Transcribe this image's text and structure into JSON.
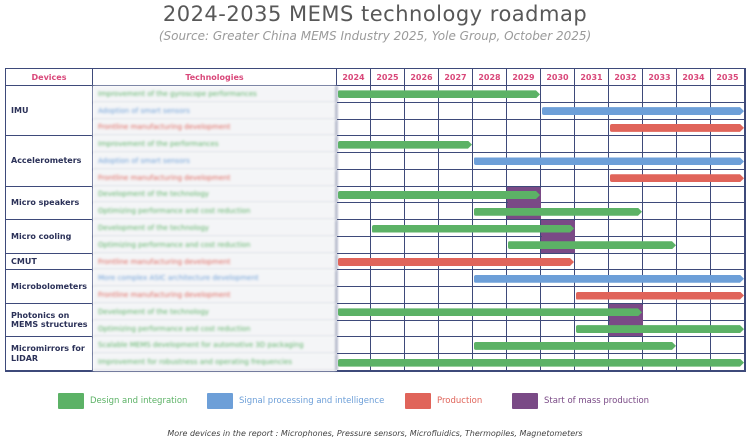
{
  "title": "2024-2035 MEMS technology roadmap",
  "subtitle": "(Source: Greater China MEMS Industry 2025, Yole Group, October 2025)",
  "colors": {
    "design": "#5cb266",
    "signal": "#6d9fd8",
    "production": "#e0645a",
    "mass": "#7a4a86",
    "header": "#d9487a",
    "grid": "#3e4a7a"
  },
  "chart_data": {
    "type": "bar",
    "orientation": "horizontal-gantt",
    "headers": {
      "devices": "Devices",
      "technologies": "Technologies"
    },
    "years": [
      "2024",
      "2025",
      "2026",
      "2027",
      "2028",
      "2029",
      "2030",
      "2031",
      "2032",
      "2033",
      "2034",
      "2035"
    ],
    "devices": [
      {
        "name": "IMU",
        "rows": [
          {
            "tech": "Improvement of the gyroscope performances",
            "category": "design",
            "start": 2024,
            "end": 2029
          },
          {
            "tech": "Adoption of smart sensors",
            "category": "signal",
            "start": 2030,
            "end": 2035
          },
          {
            "tech": "Frontline manufacturing development",
            "category": "production",
            "start": 2032,
            "end": 2035
          }
        ]
      },
      {
        "name": "Accelerometers",
        "rows": [
          {
            "tech": "Improvement of the performances",
            "category": "design",
            "start": 2024,
            "end": 2027
          },
          {
            "tech": "Adoption of smart sensors",
            "category": "signal",
            "start": 2028,
            "end": 2035
          },
          {
            "tech": "Frontline manufacturing development",
            "category": "production",
            "start": 2032,
            "end": 2035
          }
        ]
      },
      {
        "name": "Micro speakers",
        "mass_year": 2029,
        "rows": [
          {
            "tech": "Development of the technology",
            "category": "design",
            "start": 2024,
            "end": 2029
          },
          {
            "tech": "Optimizing performance and cost reduction",
            "category": "design",
            "start": 2028,
            "end": 2032
          }
        ]
      },
      {
        "name": "Micro cooling",
        "mass_year": 2030,
        "rows": [
          {
            "tech": "Development of the technology",
            "category": "design",
            "start": 2025,
            "end": 2030
          },
          {
            "tech": "Optimizing performance and cost reduction",
            "category": "design",
            "start": 2029,
            "end": 2033
          }
        ]
      },
      {
        "name": "CMUT",
        "rows": [
          {
            "tech": "Frontline manufacturing development",
            "category": "production",
            "start": 2024,
            "end": 2030
          }
        ]
      },
      {
        "name": "Microbolometers",
        "rows": [
          {
            "tech": "More complex ASIC architecture development",
            "category": "signal",
            "start": 2028,
            "end": 2035
          },
          {
            "tech": "Frontline manufacturing development",
            "category": "production",
            "start": 2031,
            "end": 2035
          }
        ]
      },
      {
        "name": "Photonics on MEMS structures",
        "mass_year": 2032,
        "rows": [
          {
            "tech": "Development of the technology",
            "category": "design",
            "start": 2024,
            "end": 2032
          },
          {
            "tech": "Optimizing performance and cost reduction",
            "category": "design",
            "start": 2031,
            "end": 2035
          }
        ]
      },
      {
        "name": "Micromirrors for LIDAR",
        "rows": [
          {
            "tech": "Scalable MEMS development for automotive 3D packaging",
            "category": "design",
            "start": 2028,
            "end": 2033
          },
          {
            "tech": "Improvement for robustness and operating frequencies",
            "category": "design",
            "start": 2024,
            "end": 2035
          }
        ]
      }
    ],
    "legend": [
      {
        "key": "design",
        "label": "Design and integration"
      },
      {
        "key": "signal",
        "label": "Signal processing and intelligence"
      },
      {
        "key": "production",
        "label": "Production"
      },
      {
        "key": "mass",
        "label": "Start of mass production"
      }
    ]
  },
  "footnote": "More devices in the report : Microphones, Pressure sensors, Microfluidics, Thermopiles, Magnetometers"
}
